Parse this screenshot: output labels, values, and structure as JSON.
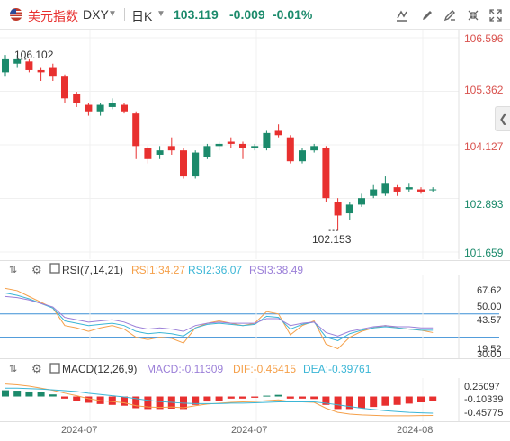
{
  "header": {
    "symbol_name": "美元指数",
    "symbol_code": "DXY",
    "period": "日K",
    "last_price": "103.119",
    "change": "-0.009",
    "change_pct": "-0.01%"
  },
  "colors": {
    "up": "#e8302f",
    "down": "#1b8a6b",
    "price_axis": "#d9534f",
    "rsi1": "#f5a04a",
    "rsi2": "#3bb6d6",
    "rsi3": "#9b7fd8",
    "dif": "#f5a04a",
    "dea": "#3bb6d6"
  },
  "main_chart": {
    "price_labels": [
      "106.596",
      "105.362",
      "104.127",
      "102.893",
      "101.659"
    ],
    "high_label": "106.102",
    "low_label": "102.153"
  },
  "rsi_panel": {
    "title": "RSI(7,14,21)",
    "rsi1": "RSI1:34.27",
    "rsi2": "RSI2:36.07",
    "rsi3": "RSI3:38.49",
    "labels": [
      "67.62",
      "50.00",
      "43.57",
      "30.00",
      "19.52"
    ]
  },
  "macd_panel": {
    "title": "MACD(12,26,9)",
    "macd": "MACD:-0.11309",
    "dif": "DIF:-0.45415",
    "dea": "DEA:-0.39761",
    "labels": [
      "0.25097",
      "-0.10339",
      "-0.45775"
    ]
  },
  "x_axis": [
    "2024-07",
    "2024-07",
    "2024-08"
  ],
  "chart_data": {
    "type": "candlestick",
    "period": "daily",
    "ylim": [
      101.659,
      106.596
    ],
    "candles": [
      {
        "open": 105.8,
        "close": 106.1,
        "high": 106.2,
        "low": 105.7
      },
      {
        "open": 106.0,
        "close": 106.1,
        "high": 106.2,
        "low": 105.9
      },
      {
        "open": 106.05,
        "close": 105.85,
        "high": 106.1,
        "low": 105.8
      },
      {
        "open": 105.85,
        "close": 105.8,
        "high": 105.9,
        "low": 105.6
      },
      {
        "open": 105.9,
        "close": 105.7,
        "high": 106.0,
        "low": 105.6
      },
      {
        "open": 105.7,
        "close": 105.2,
        "high": 105.75,
        "low": 105.1
      },
      {
        "open": 105.3,
        "close": 105.1,
        "high": 105.35,
        "low": 105.0
      },
      {
        "open": 105.05,
        "close": 104.9,
        "high": 105.1,
        "low": 104.8
      },
      {
        "open": 104.9,
        "close": 105.05,
        "high": 105.1,
        "low": 104.8
      },
      {
        "open": 105.0,
        "close": 105.1,
        "high": 105.2,
        "low": 104.95
      },
      {
        "open": 105.05,
        "close": 104.9,
        "high": 105.1,
        "low": 104.85
      },
      {
        "open": 104.85,
        "close": 104.1,
        "high": 104.9,
        "low": 103.8
      },
      {
        "open": 104.05,
        "close": 103.8,
        "high": 104.1,
        "low": 103.7
      },
      {
        "open": 103.9,
        "close": 104.0,
        "high": 104.1,
        "low": 103.8
      },
      {
        "open": 104.1,
        "close": 104.0,
        "high": 104.3,
        "low": 103.9
      },
      {
        "open": 104.0,
        "close": 103.4,
        "high": 104.05,
        "low": 103.35
      },
      {
        "open": 103.4,
        "close": 103.95,
        "high": 104.0,
        "low": 103.35
      },
      {
        "open": 103.85,
        "close": 104.1,
        "high": 104.15,
        "low": 103.8
      },
      {
        "open": 104.1,
        "close": 104.15,
        "high": 104.2,
        "low": 104.0
      },
      {
        "open": 104.2,
        "close": 104.15,
        "high": 104.3,
        "low": 104.05
      },
      {
        "open": 104.15,
        "close": 104.05,
        "high": 104.2,
        "low": 103.8
      },
      {
        "open": 104.05,
        "close": 104.1,
        "high": 104.15,
        "low": 104.0
      },
      {
        "open": 104.05,
        "close": 104.4,
        "high": 104.45,
        "low": 104.0
      },
      {
        "open": 104.45,
        "close": 104.35,
        "high": 104.6,
        "low": 104.3
      },
      {
        "open": 104.3,
        "close": 103.75,
        "high": 104.35,
        "low": 103.7
      },
      {
        "open": 103.75,
        "close": 104.0,
        "high": 104.05,
        "low": 103.7
      },
      {
        "open": 104.0,
        "close": 104.1,
        "high": 104.15,
        "low": 103.95
      },
      {
        "open": 104.05,
        "close": 102.9,
        "high": 104.1,
        "low": 102.8
      },
      {
        "open": 102.8,
        "close": 102.5,
        "high": 102.9,
        "low": 102.15
      },
      {
        "open": 102.55,
        "close": 102.75,
        "high": 102.8,
        "low": 102.4
      },
      {
        "open": 102.75,
        "close": 102.9,
        "high": 103.0,
        "low": 102.7
      },
      {
        "open": 102.95,
        "close": 103.1,
        "high": 103.2,
        "low": 102.9
      },
      {
        "open": 103.0,
        "close": 103.25,
        "high": 103.4,
        "low": 102.95
      },
      {
        "open": 103.15,
        "close": 103.05,
        "high": 103.2,
        "low": 102.95
      },
      {
        "open": 103.1,
        "close": 103.15,
        "high": 103.25,
        "low": 103.05
      },
      {
        "open": 103.1,
        "close": 103.05,
        "high": 103.15,
        "low": 103.0
      },
      {
        "open": 103.1,
        "close": 103.1,
        "high": 103.15,
        "low": 103.05
      }
    ],
    "rsi": {
      "ylim": [
        15,
        80
      ],
      "series": [
        {
          "name": "RSI1",
          "values": [
            72,
            70,
            65,
            60,
            55,
            40,
            38,
            35,
            38,
            40,
            37,
            30,
            28,
            30,
            29,
            25,
            38,
            42,
            44,
            42,
            40,
            42,
            52,
            50,
            32,
            40,
            44,
            24,
            20,
            30,
            35,
            38,
            40,
            38,
            37,
            36,
            34
          ]
        },
        {
          "name": "RSI2",
          "values": [
            68,
            66,
            63,
            59,
            55,
            44,
            42,
            40,
            41,
            42,
            40,
            35,
            33,
            34,
            33,
            31,
            38,
            41,
            42,
            41,
            40,
            41,
            48,
            47,
            37,
            41,
            43,
            30,
            27,
            33,
            36,
            38,
            39,
            38,
            37,
            36,
            36
          ]
        },
        {
          "name": "RSI3",
          "values": [
            65,
            64,
            62,
            59,
            56,
            47,
            45,
            43,
            44,
            45,
            43,
            39,
            37,
            38,
            37,
            35,
            40,
            42,
            43,
            42,
            42,
            42,
            46,
            46,
            40,
            42,
            43,
            34,
            31,
            35,
            37,
            39,
            40,
            39,
            39,
            38,
            38
          ]
        }
      ]
    },
    "macd": {
      "ylim": [
        -0.55,
        0.4
      ],
      "histogram": [
        0.15,
        0.14,
        0.12,
        0.1,
        0.05,
        -0.05,
        -0.1,
        -0.15,
        -0.18,
        -0.2,
        -0.22,
        -0.28,
        -0.3,
        -0.3,
        -0.29,
        -0.3,
        -0.2,
        -0.12,
        -0.1,
        -0.05,
        -0.05,
        -0.03,
        0.02,
        0.04,
        -0.05,
        -0.05,
        -0.06,
        -0.2,
        -0.3,
        -0.3,
        -0.28,
        -0.25,
        -0.22,
        -0.2,
        -0.17,
        -0.14,
        -0.11
      ],
      "series": [
        {
          "name": "DIF",
          "values": [
            0.3,
            0.28,
            0.25,
            0.2,
            0.15,
            0.08,
            0.02,
            -0.05,
            -0.1,
            -0.12,
            -0.15,
            -0.22,
            -0.25,
            -0.26,
            -0.25,
            -0.27,
            -0.22,
            -0.18,
            -0.16,
            -0.14,
            -0.13,
            -0.12,
            -0.1,
            -0.08,
            -0.12,
            -0.13,
            -0.14,
            -0.28,
            -0.38,
            -0.42,
            -0.44,
            -0.45,
            -0.46,
            -0.46,
            -0.46,
            -0.455,
            -0.454
          ]
        },
        {
          "name": "DEA",
          "values": [
            0.2,
            0.2,
            0.19,
            0.18,
            0.16,
            0.14,
            0.12,
            0.08,
            0.05,
            0.02,
            -0.01,
            -0.05,
            -0.09,
            -0.12,
            -0.14,
            -0.16,
            -0.17,
            -0.17,
            -0.17,
            -0.16,
            -0.16,
            -0.15,
            -0.14,
            -0.13,
            -0.13,
            -0.13,
            -0.13,
            -0.16,
            -0.2,
            -0.24,
            -0.28,
            -0.31,
            -0.34,
            -0.36,
            -0.38,
            -0.39,
            -0.398
          ]
        }
      ]
    }
  }
}
